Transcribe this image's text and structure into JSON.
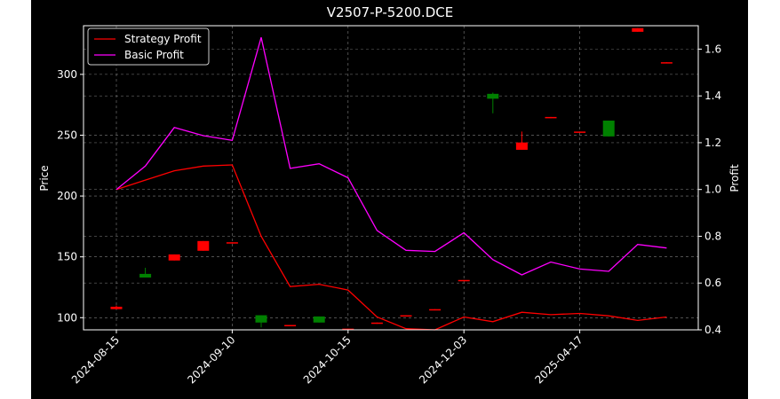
{
  "chart_data": {
    "type": "candlestick+line",
    "title": "V2507-P-5200.DCE",
    "ylabel_left": "Price",
    "ylabel_right": "Profit",
    "xlabel": "",
    "x_tick_labels": [
      "2024-08-15",
      "2024-09-10",
      "2024-10-15",
      "2024-12-03",
      "2025-04-17"
    ],
    "x_tick_indices": [
      0,
      4,
      8,
      12,
      16
    ],
    "ylim_left": [
      90,
      340
    ],
    "yticks_left": [
      100,
      150,
      200,
      250,
      300
    ],
    "ylim_right": [
      0.4,
      1.7
    ],
    "yticks_right": [
      0.4,
      0.6,
      0.8,
      1.0,
      1.2,
      1.4,
      1.6
    ],
    "grid": true,
    "legend_position": "top-left",
    "colors": {
      "background": "#000000",
      "foreground": "#ffffff",
      "up": "#008000",
      "down": "#ff0000",
      "strategy": "#ff0000",
      "basic": "#ff00ff"
    },
    "candles": [
      {
        "o": 109,
        "h": 110,
        "l": 107,
        "c": 107
      },
      {
        "o": 133,
        "h": 141,
        "l": 133,
        "c": 136
      },
      {
        "o": 152,
        "h": 152,
        "l": 147,
        "c": 147
      },
      {
        "o": 163,
        "h": 163,
        "l": 155,
        "c": 155
      },
      {
        "o": 162,
        "h": 162,
        "l": 161,
        "c": 161
      },
      {
        "o": 96,
        "h": 102,
        "l": 92,
        "c": 102
      },
      {
        "o": 94,
        "h": 94,
        "l": 93,
        "c": 93
      },
      {
        "o": 96,
        "h": 101,
        "l": 96,
        "c": 101
      },
      {
        "o": 91,
        "h": 91,
        "l": 90,
        "c": 90
      },
      {
        "o": 96,
        "h": 96,
        "l": 95,
        "c": 95
      },
      {
        "o": 102,
        "h": 102,
        "l": 101,
        "c": 101
      },
      {
        "o": 107,
        "h": 107,
        "l": 106,
        "c": 106
      },
      {
        "o": 131,
        "h": 131,
        "l": 130,
        "c": 130
      },
      {
        "o": 280,
        "h": 285,
        "l": 268,
        "c": 284
      },
      {
        "o": 244,
        "h": 253,
        "l": 238,
        "c": 238
      },
      {
        "o": 265,
        "h": 265,
        "l": 264,
        "c": 264
      },
      {
        "o": 253,
        "h": 253,
        "l": 252,
        "c": 252
      },
      {
        "o": 249,
        "h": 262,
        "l": 249,
        "c": 262
      },
      {
        "o": 338,
        "h": 338,
        "l": 335,
        "c": 335
      },
      {
        "o": 310,
        "h": 310,
        "l": 309,
        "c": 309
      }
    ],
    "series": [
      {
        "name": "Strategy Profit",
        "values": [
          1.0,
          1.04,
          1.08,
          1.1,
          1.105,
          0.8,
          0.585,
          0.595,
          0.57,
          0.455,
          0.405,
          0.4,
          0.455,
          0.435,
          0.475,
          0.465,
          0.47,
          0.46,
          0.44,
          0.455
        ]
      },
      {
        "name": "Basic Profit",
        "values": [
          1.0,
          1.1,
          1.265,
          1.23,
          1.21,
          1.65,
          1.09,
          1.11,
          1.05,
          0.825,
          0.74,
          0.735,
          0.815,
          0.7,
          0.635,
          0.69,
          0.66,
          0.65,
          0.765,
          0.75
        ]
      }
    ]
  }
}
